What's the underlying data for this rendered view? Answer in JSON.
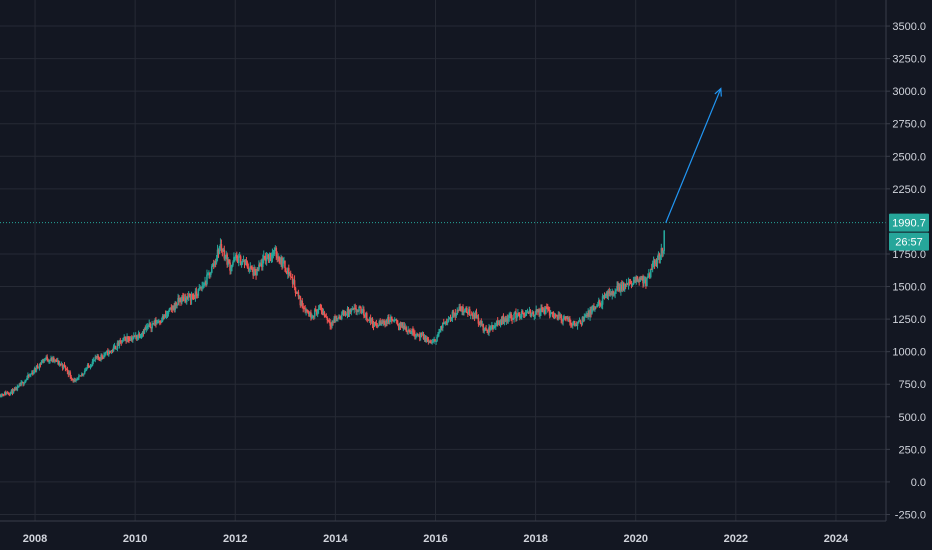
{
  "chart_data": {
    "type": "candlestick",
    "title": "",
    "xlabel": "",
    "ylabel": "",
    "x_ticks": [
      "2008",
      "2010",
      "2012",
      "2014",
      "2016",
      "2018",
      "2020",
      "2022",
      "2024"
    ],
    "y_ticks": [
      "3500.0",
      "3250.0",
      "3000.0",
      "2750.0",
      "2500.0",
      "2250.0",
      "1750.0",
      "1500.0",
      "1250.0",
      "1000.0",
      "750.0",
      "500.0",
      "250.0",
      "0.0",
      "-250.0"
    ],
    "ylim": [
      -300,
      3700
    ],
    "xlim": [
      2007.3,
      2025.0
    ],
    "grid": true,
    "price_series": {
      "x": [
        2007.3,
        2007.6,
        2007.9,
        2008.2,
        2008.4,
        2008.6,
        2008.8,
        2009.0,
        2009.2,
        2009.5,
        2009.8,
        2010.0,
        2010.3,
        2010.6,
        2010.9,
        2011.2,
        2011.4,
        2011.6,
        2011.7,
        2011.9,
        2012.0,
        2012.2,
        2012.4,
        2012.6,
        2012.8,
        2012.95,
        2013.1,
        2013.3,
        2013.5,
        2013.7,
        2013.9,
        2014.2,
        2014.5,
        2014.8,
        2015.1,
        2015.4,
        2015.7,
        2015.95,
        2016.2,
        2016.5,
        2016.8,
        2017.0,
        2017.3,
        2017.6,
        2017.9,
        2018.2,
        2018.5,
        2018.8,
        2019.1,
        2019.4,
        2019.7,
        2019.95,
        2020.1,
        2020.2,
        2020.4,
        2020.55,
        2020.58
      ],
      "close": [
        670,
        700,
        820,
        950,
        930,
        880,
        760,
        860,
        940,
        1000,
        1100,
        1110,
        1200,
        1270,
        1400,
        1430,
        1530,
        1700,
        1820,
        1650,
        1720,
        1680,
        1590,
        1720,
        1760,
        1680,
        1590,
        1380,
        1280,
        1330,
        1220,
        1300,
        1320,
        1200,
        1250,
        1180,
        1120,
        1060,
        1240,
        1330,
        1280,
        1150,
        1240,
        1280,
        1290,
        1320,
        1260,
        1210,
        1300,
        1420,
        1500,
        1520,
        1580,
        1520,
        1700,
        1790,
        1990
      ]
    },
    "projection": {
      "x": [
        2020.6,
        2021.7
      ],
      "y": [
        1990,
        3020
      ]
    },
    "last_price": {
      "value": 1990.7,
      "label": "1990.7",
      "countdown": "26:57"
    },
    "colors": {
      "background": "#131722",
      "up": "#26a69a",
      "down": "#ef5350",
      "projection": "#2196f3",
      "price_line": "#26a69a",
      "badge": "#26a69a",
      "axis_text": "#d1d4dc"
    }
  }
}
